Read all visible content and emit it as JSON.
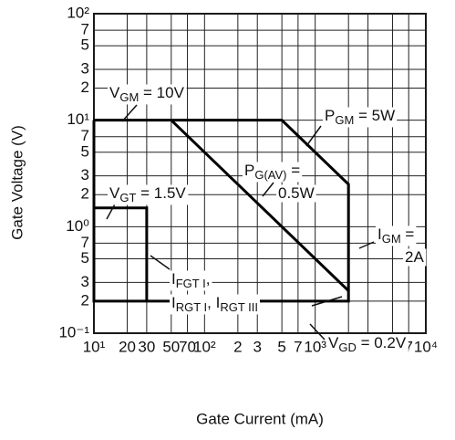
{
  "chart_data": {
    "type": "line",
    "x_label": "Gate Current  (mA)",
    "y_label": "Gate Voltage  (V)",
    "log_x": true,
    "log_y": true,
    "grid": true,
    "xlim": [
      10,
      10000
    ],
    "ylim": [
      0.1,
      100
    ],
    "xticks": [
      {
        "value": 10,
        "label": "10¹"
      },
      20,
      30,
      50,
      70,
      {
        "value": 100,
        "label": "10²"
      },
      {
        "value": 200,
        "label": "2"
      },
      {
        "value": 300,
        "label": "3"
      },
      {
        "value": 500,
        "label": "5"
      },
      {
        "value": 700,
        "label": "7"
      },
      {
        "value": 1000,
        "label": "10³"
      },
      {
        "value": 2000,
        "label": "2"
      },
      {
        "value": 3000,
        "label": "3"
      },
      {
        "value": 5000,
        "label": "5"
      },
      {
        "value": 7000,
        "label": "7"
      },
      {
        "value": 10000,
        "label": "10⁴"
      }
    ],
    "yticks": [
      {
        "value": 0.1,
        "label": "10⁻¹"
      },
      {
        "value": 0.2,
        "label": "2"
      },
      {
        "value": 0.3,
        "label": "3"
      },
      {
        "value": 0.5,
        "label": "5"
      },
      {
        "value": 0.7,
        "label": "7"
      },
      {
        "value": 1,
        "label": "10⁰"
      },
      2,
      3,
      5,
      7,
      {
        "value": 10,
        "label": "10¹"
      },
      {
        "value": 20,
        "label": "2"
      },
      {
        "value": 30,
        "label": "3"
      },
      {
        "value": 50,
        "label": "5"
      },
      {
        "value": 70,
        "label": "7"
      },
      {
        "value": 100,
        "label": "10²"
      }
    ],
    "series": [
      {
        "color": "#000000",
        "x": [
          10,
          500,
          2000,
          2000,
          10,
          10
        ],
        "values": [
          10,
          10,
          2.5,
          0.2,
          0.2,
          10
        ]
      },
      {
        "color": "#000000",
        "x": [
          50,
          2000
        ],
        "values": [
          10,
          0.25
        ]
      },
      {
        "color": "#000000",
        "x": [
          10,
          30,
          30
        ],
        "values": [
          1.5,
          1.5,
          0.2
        ]
      }
    ],
    "annotations": [
      {
        "lines": [
          [
            {
              "text": "V"
            },
            {
              "text": "GM",
              "sub": true
            },
            {
              "text": " = 10V"
            }
          ]
        ]
      },
      {
        "lines": [
          [
            {
              "text": "P"
            },
            {
              "text": "GM",
              "sub": true
            },
            {
              "text": " = 5W"
            }
          ]
        ]
      },
      {
        "lines": [
          [
            {
              "text": "P"
            },
            {
              "text": "G(AV)",
              "sub": true
            },
            {
              "text": " ="
            }
          ],
          [
            {
              "text": "0.5W"
            }
          ]
        ]
      },
      {
        "lines": [
          [
            {
              "text": "V"
            },
            {
              "text": "GT",
              "sub": true
            },
            {
              "text": " = 1.5V"
            }
          ]
        ]
      },
      {
        "lines": [
          [
            {
              "text": "I"
            },
            {
              "text": "GM",
              "sub": true
            },
            {
              "text": " ="
            }
          ],
          [
            {
              "text": "2A"
            }
          ]
        ]
      },
      {
        "lines": [
          [
            {
              "text": "I"
            },
            {
              "text": "FGT I",
              "sub": true
            },
            {
              "text": ","
            }
          ]
        ]
      },
      {
        "lines": [
          [
            {
              "text": "I"
            },
            {
              "text": "RGT I",
              "sub": true
            },
            {
              "text": ", I"
            },
            {
              "text": "RGT III",
              "sub": true
            }
          ]
        ]
      },
      {
        "lines": [
          [
            {
              "text": "V"
            },
            {
              "text": "GD",
              "sub": true
            },
            {
              "text": " = 0.2V"
            }
          ]
        ]
      }
    ]
  }
}
